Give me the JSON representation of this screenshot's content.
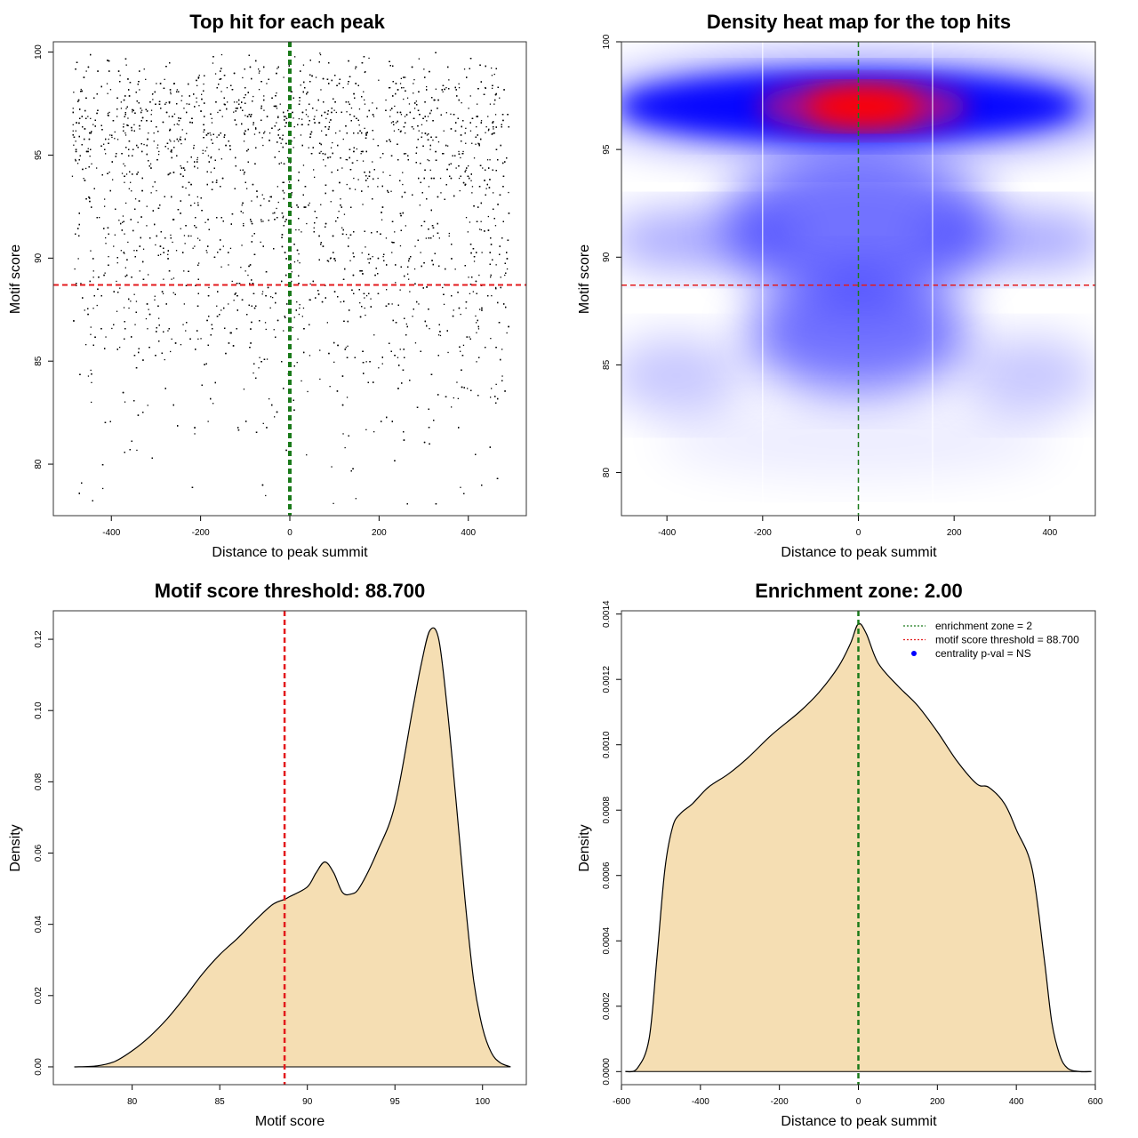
{
  "chart_data": [
    {
      "type": "scatter",
      "title": "Top hit for each peak",
      "xlabel": "Distance to peak summit",
      "ylabel": "Motif score",
      "xlim": [
        -530,
        530
      ],
      "ylim": [
        77.5,
        100.5
      ],
      "xticks": [
        -400,
        -200,
        0,
        200,
        400
      ],
      "yticks": [
        80,
        85,
        90,
        95,
        100
      ],
      "point_color": "#000000",
      "density_profile": {
        "y": [
          78,
          80,
          82,
          84,
          86,
          88,
          89,
          90,
          91,
          92,
          93,
          94,
          95,
          96,
          97,
          98,
          99,
          100
        ],
        "relative_density": [
          0.02,
          0.05,
          0.1,
          0.17,
          0.27,
          0.37,
          0.42,
          0.44,
          0.47,
          0.43,
          0.45,
          0.6,
          0.76,
          0.93,
          1.0,
          0.74,
          0.4,
          0.2
        ]
      },
      "hlines": [
        {
          "y": 88.7,
          "color": "#e31a1c",
          "style": "dashed"
        }
      ],
      "vlines": [
        {
          "x": 0,
          "color": "#1a7a1a",
          "style": "dashed"
        }
      ]
    },
    {
      "type": "heatmap",
      "title": "Density heat map for the top hits",
      "xlabel": "Distance to peak summit",
      "ylabel": "Motif score",
      "xlim": [
        -495,
        495
      ],
      "ylim": [
        78,
        100
      ],
      "xticks": [
        -400,
        -200,
        0,
        200,
        400
      ],
      "yticks": [
        80,
        85,
        90,
        95,
        100
      ],
      "colors": [
        "#ffffff",
        "#0000ff",
        "#ff0000"
      ],
      "hot_spot": {
        "x": 10,
        "y": 97
      },
      "hlines": [
        {
          "y": 88.7,
          "color": "#e31a1c",
          "style": "dashed"
        }
      ],
      "vlines": [
        {
          "x": 0,
          "color": "#1a7a1a",
          "style": "dashed"
        },
        {
          "x": -200,
          "color": "#ffffff",
          "style": "solid"
        },
        {
          "x": 155,
          "color": "#ffffff",
          "style": "solid"
        }
      ]
    },
    {
      "type": "area",
      "title": "Motif score threshold: 88.700",
      "xlabel": "Motif score",
      "ylabel": "Density",
      "xlim": [
        75.5,
        102.5
      ],
      "ylim": [
        -0.005,
        0.128
      ],
      "xticks": [
        80,
        85,
        90,
        95,
        100
      ],
      "yticks": [
        0.0,
        0.02,
        0.04,
        0.06,
        0.08,
        0.1,
        0.12
      ],
      "ytick_labels": [
        "0.00",
        "0.02",
        "0.04",
        "0.06",
        "0.08",
        "0.10",
        "0.12"
      ],
      "fill_color": "#f5deb3",
      "x": [
        76.7,
        78,
        79,
        80,
        81,
        82,
        83,
        84,
        85,
        86,
        87,
        88,
        88.7,
        89,
        90,
        90.5,
        91,
        91.5,
        92,
        92.5,
        93,
        94,
        95,
        96,
        96.5,
        97,
        97.5,
        98,
        98.5,
        99,
        99.5,
        100,
        100.5,
        101,
        101.6
      ],
      "y": [
        0.0,
        0.0003,
        0.0015,
        0.0045,
        0.0085,
        0.0135,
        0.0195,
        0.026,
        0.0315,
        0.036,
        0.041,
        0.0455,
        0.047,
        0.0478,
        0.0505,
        0.0545,
        0.0575,
        0.0545,
        0.049,
        0.0485,
        0.0505,
        0.0605,
        0.0735,
        0.1,
        0.113,
        0.1225,
        0.12,
        0.1,
        0.074,
        0.047,
        0.024,
        0.011,
        0.004,
        0.0012,
        0.0
      ],
      "vlines": [
        {
          "x": 88.7,
          "color": "#e31a1c",
          "style": "dashed"
        }
      ]
    },
    {
      "type": "area",
      "title": "Enrichment zone: 2.00",
      "xlabel": "Distance to peak summit",
      "ylabel": "Density",
      "xlim": [
        -600,
        600
      ],
      "ylim": [
        -4e-05,
        0.00141
      ],
      "xticks": [
        -600,
        -400,
        -200,
        0,
        200,
        400,
        600
      ],
      "yticks": [
        0.0,
        0.0002,
        0.0004,
        0.0006,
        0.0008,
        0.001,
        0.0012,
        0.0014
      ],
      "ytick_labels": [
        "0.0000",
        "0.0002",
        "0.0004",
        "0.0006",
        "0.0008",
        "0.0010",
        "0.0012",
        "0.0014"
      ],
      "fill_color": "#f5deb3",
      "x": [
        -590,
        -560,
        -530,
        -510,
        -490,
        -470,
        -450,
        -420,
        -380,
        -330,
        -280,
        -220,
        -150,
        -100,
        -50,
        -20,
        0,
        20,
        50,
        100,
        150,
        200,
        250,
        300,
        330,
        370,
        400,
        440,
        470,
        490,
        510,
        530,
        560,
        590
      ],
      "y": [
        0.0,
        1e-05,
        0.0001,
        0.00035,
        0.00062,
        0.00075,
        0.00079,
        0.00082,
        0.00087,
        0.00091,
        0.00096,
        0.00103,
        0.0011,
        0.00116,
        0.00124,
        0.00131,
        0.00137,
        0.00134,
        0.00125,
        0.00118,
        0.00112,
        0.00104,
        0.00095,
        0.00088,
        0.00087,
        0.00082,
        0.00074,
        0.00062,
        0.00035,
        0.00015,
        5e-05,
        1e-05,
        0.0,
        0.0
      ],
      "vlines": [
        {
          "x": 0,
          "color": "#1a7a1a",
          "style": "dashed"
        }
      ],
      "legend": {
        "position": "top-right",
        "entries": [
          {
            "label": "enrichment zone = 2",
            "color": "#1a7a1a",
            "symbol": "dotted-line"
          },
          {
            "label": "motif score threshold = 88.700",
            "color": "#e31a1c",
            "symbol": "dotted-line"
          },
          {
            "label": "centrality p-val = NS",
            "color": "#0000ff",
            "symbol": "dot"
          }
        ]
      }
    }
  ]
}
